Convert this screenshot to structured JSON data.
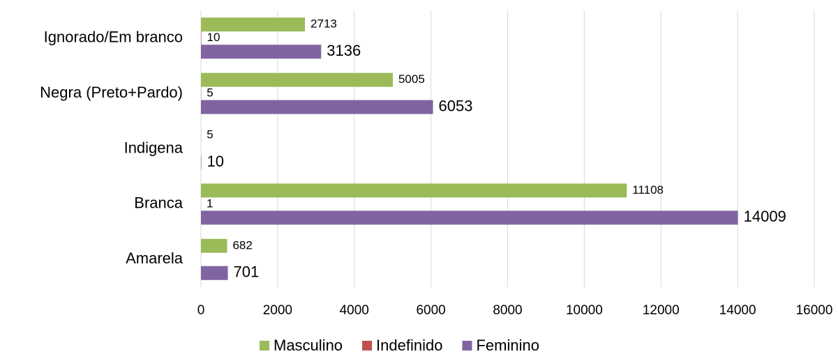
{
  "chart_data": {
    "type": "hbar",
    "categories": [
      "Ignorado/Em branco",
      "Negra (Preto+Pardo)",
      "Indigena",
      "Branca",
      "Amarela"
    ],
    "series": [
      {
        "name": "Masculino",
        "color": "#9bbb59",
        "values": [
          2713,
          5005,
          5,
          11108,
          682
        ]
      },
      {
        "name": "Indefinido",
        "color": "#c0504d",
        "values": [
          10,
          5,
          0,
          1,
          0
        ]
      },
      {
        "name": "Feminino",
        "color": "#8064a2",
        "values": [
          3136,
          6053,
          10,
          14009,
          701
        ]
      }
    ],
    "xlim": [
      0,
      16000
    ],
    "xticks": [
      0,
      2000,
      4000,
      6000,
      8000,
      10000,
      12000,
      14000,
      16000
    ],
    "grid": true,
    "legend": "bottom"
  }
}
